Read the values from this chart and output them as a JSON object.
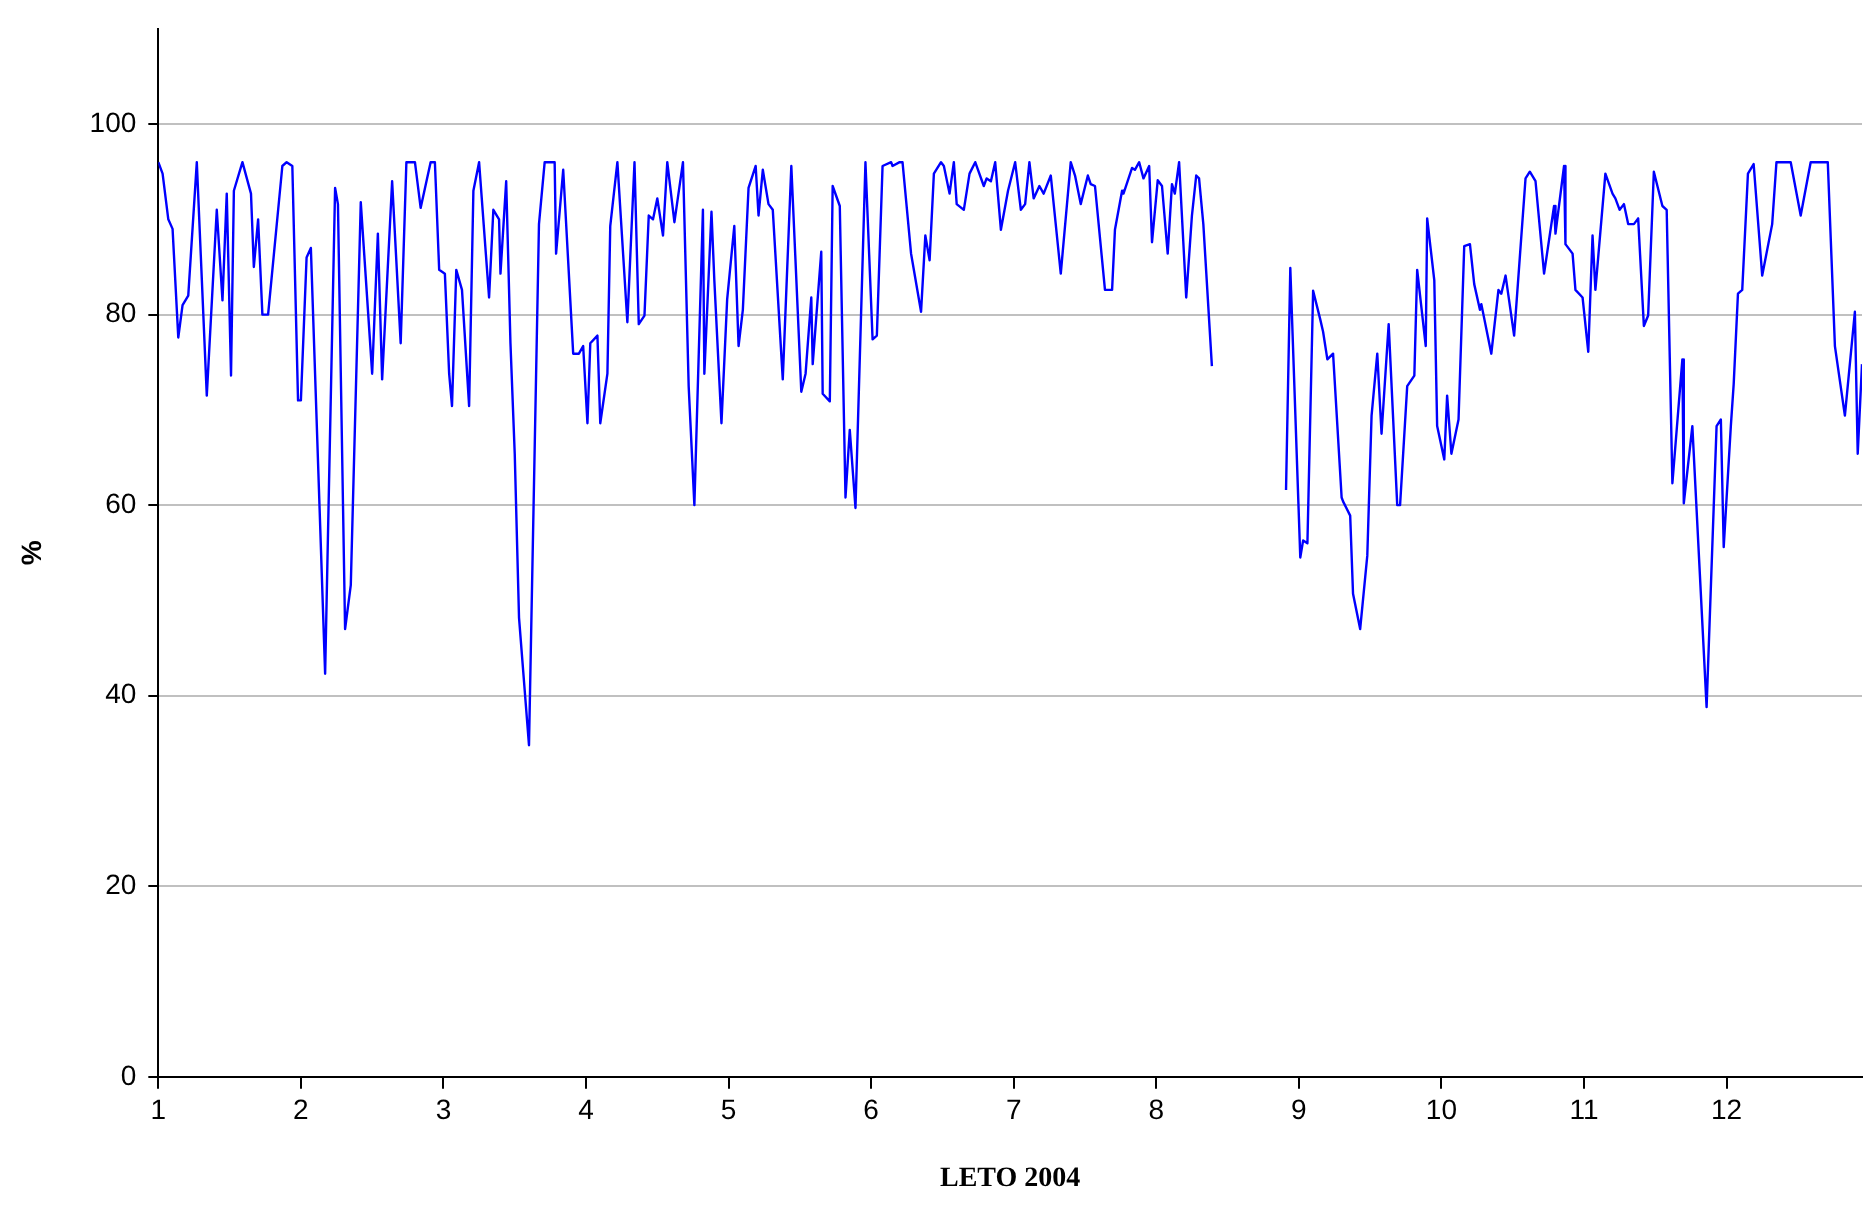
{
  "chart_data": {
    "type": "line",
    "xlabel": "LETO 2004",
    "ylabel": "%",
    "xlim": [
      1,
      12.95
    ],
    "xticks": [
      1,
      2,
      3,
      4,
      5,
      6,
      7,
      8,
      9,
      10,
      11,
      12
    ],
    "ylim": [
      0,
      110
    ],
    "yticks": [
      0,
      20,
      40,
      60,
      80,
      100
    ],
    "grid": "y",
    "marker": "none",
    "line_style": "solid",
    "x": [
      1.0,
      1.03,
      1.07,
      1.1,
      1.14,
      1.17,
      1.21,
      1.27,
      1.34,
      1.41,
      1.45,
      1.48,
      1.51,
      1.53,
      1.59,
      1.65,
      1.67,
      1.7,
      1.73,
      1.77,
      1.87,
      1.9,
      1.94,
      1.98,
      2.0,
      2.04,
      2.07,
      2.17,
      2.24,
      2.26,
      2.31,
      2.35,
      2.42,
      2.5,
      2.54,
      2.57,
      2.64,
      2.7,
      2.74,
      2.8,
      2.84,
      2.91,
      2.94,
      2.97,
      3.01,
      3.04,
      3.06,
      3.09,
      3.13,
      3.18,
      3.21,
      3.25,
      3.32,
      3.35,
      3.39,
      3.4,
      3.44,
      3.47,
      3.5,
      3.53,
      3.6,
      3.67,
      3.71,
      3.78,
      3.79,
      3.84,
      3.91,
      3.95,
      3.98,
      4.01,
      4.03,
      4.08,
      4.1,
      4.15,
      4.17,
      4.22,
      4.29,
      4.34,
      4.37,
      4.41,
      4.44,
      4.47,
      4.5,
      4.54,
      4.57,
      4.62,
      4.68,
      4.72,
      4.76,
      4.82,
      4.83,
      4.88,
      4.9,
      4.95,
      4.99,
      5.04,
      5.07,
      5.1,
      5.14,
      5.19,
      5.21,
      5.24,
      5.28,
      5.31,
      5.38,
      5.44,
      5.51,
      5.54,
      5.58,
      5.59,
      5.65,
      5.66,
      5.71,
      5.73,
      5.78,
      5.82,
      5.85,
      5.89,
      5.96,
      6.01,
      6.04,
      6.08,
      6.14,
      6.15,
      6.2,
      6.22,
      6.28,
      6.35,
      6.38,
      6.41,
      6.44,
      6.49,
      6.51,
      6.55,
      6.58,
      6.6,
      6.65,
      6.69,
      6.73,
      6.79,
      6.81,
      6.84,
      6.87,
      6.91,
      6.96,
      7.01,
      7.05,
      7.08,
      7.11,
      7.14,
      7.18,
      7.21,
      7.26,
      7.33,
      7.4,
      7.43,
      7.47,
      7.52,
      7.54,
      7.57,
      7.64,
      7.69,
      7.71,
      7.76,
      7.77,
      7.83,
      7.85,
      7.88,
      7.91,
      7.95,
      7.97,
      8.01,
      8.04,
      8.08,
      8.11,
      8.13,
      8.16,
      8.21,
      8.25,
      8.28,
      8.3,
      8.33,
      8.39,
      8.65,
      8.91,
      8.94,
      9.01,
      9.03,
      9.06,
      9.1,
      9.15,
      9.17,
      9.2,
      9.24,
      9.3,
      9.31,
      9.36,
      9.38,
      9.43,
      9.48,
      9.51,
      9.55,
      9.58,
      9.63,
      9.69,
      9.71,
      9.76,
      9.81,
      9.83,
      9.89,
      9.9,
      9.95,
      9.97,
      10.02,
      10.04,
      10.07,
      10.12,
      10.16,
      10.2,
      10.23,
      10.27,
      10.28,
      10.35,
      10.4,
      10.42,
      10.45,
      10.51,
      10.59,
      10.62,
      10.66,
      10.72,
      10.79,
      10.8,
      10.86,
      10.87,
      10.92,
      10.94,
      10.99,
      11.03,
      11.06,
      11.08,
      11.15,
      11.2,
      11.22,
      11.25,
      11.28,
      11.31,
      11.35,
      11.38,
      11.42,
      11.45,
      11.49,
      11.55,
      11.58,
      11.62,
      11.69,
      11.7,
      11.76,
      11.86,
      11.93,
      11.96,
      11.98,
      12.03,
      12.05,
      12.08,
      12.11,
      12.15,
      12.19,
      12.25,
      12.32,
      12.35,
      12.45,
      12.52,
      12.59,
      12.71,
      12.76,
      12.83,
      12.9,
      12.92,
      12.95
    ],
    "series": [
      {
        "color": "#0000ff",
        "values": [
          96,
          94.8,
          90,
          89,
          77.6,
          81,
          82,
          96,
          71.5,
          91,
          81.5,
          92.7,
          73.6,
          93,
          96,
          92.7,
          85,
          90,
          80,
          80,
          95.6,
          96,
          95.6,
          71,
          71,
          86,
          87,
          42.3,
          93.3,
          91.6,
          47,
          51.6,
          91.8,
          73.8,
          88.5,
          73.2,
          94,
          77,
          96,
          96,
          91.2,
          96,
          96,
          84.7,
          84.3,
          73.8,
          70.4,
          84.7,
          82.6,
          70.4,
          93,
          96,
          81.8,
          91,
          90,
          84.3,
          94,
          77,
          65.4,
          48.2,
          34.8,
          89.5,
          96,
          96,
          86.4,
          95.2,
          75.9,
          75.9,
          76.7,
          68.6,
          77,
          77.8,
          68.6,
          73.8,
          89.3,
          96,
          79.2,
          96,
          79,
          79.9,
          90.4,
          90,
          92.2,
          88.3,
          96,
          89.7,
          96,
          72.5,
          60,
          91,
          73.8,
          90.8,
          83.6,
          68.6,
          81.6,
          89.3,
          76.7,
          80.5,
          93.3,
          95.6,
          90.4,
          95.2,
          91.6,
          91,
          73.2,
          95.6,
          71.9,
          73.8,
          81.8,
          74.8,
          86.6,
          71.7,
          70.9,
          93.5,
          91.4,
          60.8,
          67.9,
          59.7,
          96,
          77.4,
          77.8,
          95.6,
          96,
          95.6,
          96,
          96,
          86.4,
          80.3,
          88.3,
          85.7,
          94.8,
          96,
          95.6,
          92.7,
          96,
          91.6,
          91,
          94.8,
          96,
          93.5,
          94.3,
          94,
          96,
          88.9,
          93,
          96,
          91,
          91.6,
          96,
          92.2,
          93.5,
          92.7,
          94.6,
          84.3,
          96,
          94.6,
          91.6,
          94.6,
          93.7,
          93.5,
          82.6,
          82.6,
          88.9,
          93,
          92.7,
          95.4,
          95.2,
          96,
          94.3,
          95.6,
          87.6,
          94.1,
          93.5,
          86.4,
          93.7,
          92.7,
          96,
          81.8,
          90.4,
          94.6,
          94.3,
          89.5,
          74.6,
          null,
          61.6,
          84.9,
          54.5,
          56.3,
          56,
          82.5,
          79.5,
          78.2,
          75.3,
          75.9,
          60.8,
          60.4,
          58.9,
          50.7,
          47,
          54.7,
          69.4,
          75.9,
          67.5,
          79,
          60,
          60,
          72.5,
          73.6,
          84.7,
          76.7,
          90.1,
          83.6,
          68.3,
          64.8,
          71.5,
          65.4,
          69,
          87.2,
          87.4,
          83.2,
          80.5,
          81.1,
          75.9,
          82.6,
          82.2,
          84.1,
          77.8,
          94.3,
          95,
          94,
          84.3,
          91.4,
          88.5,
          95.6,
          87.4,
          86.4,
          82.6,
          81.8,
          76.1,
          88.3,
          82.6,
          94.8,
          92.7,
          92.2,
          91,
          91.6,
          89.5,
          89.5,
          90.1,
          78.8,
          79.9,
          95,
          91.4,
          91,
          62.3,
          75.3,
          60.2,
          68.3,
          38.8,
          68.3,
          69,
          55.6,
          68.3,
          72.7,
          82.2,
          82.6,
          94.8,
          95.8,
          84.1,
          89.5,
          96,
          96,
          90.4,
          96,
          96,
          76.7,
          69.4,
          80.3,
          65.4,
          74.8
        ]
      }
    ]
  }
}
